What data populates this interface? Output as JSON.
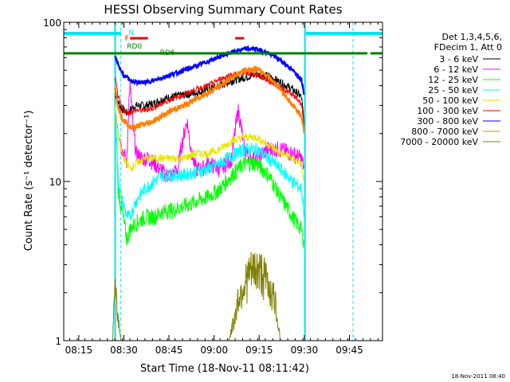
{
  "chart_data": {
    "type": "line",
    "title": "HESSI Observing Summary Count Rates",
    "xlabel": "Start Time (18-Nov-11 08:11:42)",
    "ylabel": "Count Rate (s⁻¹ detector⁻¹)",
    "yscale": "log",
    "ylim": [
      1,
      100
    ],
    "xlim_minutes": [
      490,
      596
    ],
    "x_ticks": [
      {
        "min": 495,
        "label": "08:15"
      },
      {
        "min": 510,
        "label": "08:30"
      },
      {
        "min": 525,
        "label": "08:45"
      },
      {
        "min": 540,
        "label": "09:00"
      },
      {
        "min": 555,
        "label": "09:15"
      },
      {
        "min": 570,
        "label": "09:30"
      },
      {
        "min": 585,
        "label": "09:45"
      }
    ],
    "y_ticks": [
      {
        "value": 1,
        "label": "1"
      },
      {
        "value": 10,
        "label": "10"
      },
      {
        "value": 100,
        "label": "100"
      }
    ],
    "legend_header": [
      "Det 1,3,4,5,6,",
      "FDecim 1, Att 0"
    ],
    "legend_position": "right",
    "footer": "18-Nov-2011 08:40",
    "flags": [
      {
        "label": "N",
        "color": "#00e5ee"
      },
      {
        "label": "F",
        "color": "#ff0000"
      },
      {
        "label": "RD0",
        "color": "#008000"
      },
      {
        "label": "RD6",
        "color": "#008000"
      }
    ],
    "series": [
      {
        "name": "3 - 6 keV",
        "color": "#000000",
        "x": [
          507,
          508,
          509,
          510,
          511,
          512,
          514,
          517,
          520,
          523,
          526,
          530,
          534,
          538,
          542,
          546,
          550,
          554,
          558,
          562,
          566,
          569,
          570
        ],
        "y": [
          36,
          32,
          29,
          28,
          27,
          28,
          30,
          30,
          31,
          33,
          34,
          35,
          36,
          38,
          40,
          43,
          45,
          47,
          46,
          42,
          38,
          34,
          22
        ]
      },
      {
        "name": "6 - 12 keV",
        "color": "#ff00ff",
        "x": [
          507,
          508,
          509,
          510,
          511,
          512,
          513,
          514,
          516,
          518,
          520,
          522,
          524,
          526,
          528,
          530,
          531,
          532,
          533,
          534,
          536,
          538,
          542,
          546,
          548,
          550,
          552,
          554,
          558,
          562,
          566,
          569,
          570
        ],
        "y": [
          30,
          22,
          17,
          15,
          13,
          40,
          22,
          15,
          14,
          14,
          13,
          12,
          11,
          11,
          12,
          20,
          24,
          17,
          14,
          12,
          12,
          13,
          12,
          14,
          28,
          16,
          14,
          14,
          16,
          16,
          15,
          14,
          12
        ]
      },
      {
        "name": "12 - 25 keV",
        "color": "#00ff00",
        "x": [
          507,
          508,
          509,
          510,
          511,
          512,
          514,
          517,
          520,
          523,
          526,
          530,
          534,
          538,
          542,
          546,
          550,
          554,
          558,
          562,
          566,
          569,
          570
        ],
        "y": [
          30,
          9,
          7,
          5.5,
          4.3,
          5,
          5.5,
          6,
          6,
          6.5,
          6.6,
          7,
          7.5,
          8,
          9,
          11,
          13,
          13,
          11,
          8,
          6,
          5,
          4
        ]
      },
      {
        "name": "25 - 50 keV",
        "color": "#00ffff",
        "x": [
          507,
          508,
          509,
          510,
          511,
          512,
          514,
          517,
          520,
          523,
          526,
          530,
          534,
          538,
          542,
          546,
          550,
          554,
          558,
          562,
          566,
          569,
          570
        ],
        "y": [
          30,
          11,
          8,
          7,
          6,
          6,
          7.5,
          9,
          10,
          11,
          11,
          11,
          11.5,
          12,
          13,
          14.5,
          16,
          16,
          14,
          12,
          10,
          9,
          6
        ]
      },
      {
        "name": "50 - 100 keV",
        "color": "#e6e600",
        "x": [
          507,
          508,
          509,
          510,
          511,
          512,
          514,
          517,
          520,
          523,
          526,
          530,
          534,
          538,
          542,
          546,
          550,
          554,
          558,
          562,
          566,
          569,
          570
        ],
        "y": [
          30,
          20,
          16,
          14,
          13,
          12,
          13,
          14,
          14,
          14,
          14,
          14,
          15,
          15,
          16,
          18,
          19,
          19,
          17,
          15,
          14,
          13,
          9
        ]
      },
      {
        "name": "100 - 300 keV",
        "color": "#ff0000",
        "x": [
          507,
          508,
          509,
          510,
          511,
          512,
          514,
          517,
          520,
          523,
          526,
          530,
          534,
          538,
          542,
          546,
          550,
          554,
          558,
          562,
          566,
          569,
          570
        ],
        "y": [
          45,
          35,
          30,
          28,
          27,
          27,
          28,
          28,
          29,
          31,
          33,
          35,
          38,
          40,
          44,
          47,
          48,
          47,
          43,
          39,
          35,
          31,
          22
        ]
      },
      {
        "name": "300 - 800 keV",
        "color": "#0000ff",
        "x": [
          507,
          508,
          509,
          510,
          511,
          512,
          514,
          517,
          520,
          523,
          526,
          530,
          534,
          538,
          542,
          546,
          550,
          554,
          558,
          562,
          566,
          569,
          570
        ],
        "y": [
          60,
          55,
          50,
          46,
          45,
          43,
          42,
          42,
          43,
          45,
          47,
          50,
          53,
          57,
          61,
          65,
          68,
          68,
          64,
          58,
          50,
          44,
          35
        ]
      },
      {
        "name": "800 - 7000 keV",
        "color": "#ff8000",
        "x": [
          507,
          508,
          509,
          510,
          511,
          512,
          514,
          517,
          520,
          523,
          526,
          530,
          534,
          538,
          542,
          546,
          550,
          554,
          558,
          562,
          566,
          569,
          570
        ],
        "y": [
          40,
          30,
          26,
          24,
          23,
          22,
          22,
          23,
          24,
          26,
          28,
          30,
          33,
          36,
          40,
          45,
          50,
          51,
          46,
          38,
          30,
          26,
          20
        ]
      },
      {
        "name": "7000 - 20000 keV",
        "color": "#808000",
        "x": [
          506.3,
          507,
          507.5,
          508,
          509,
          510,
          511,
          514,
          520,
          530,
          540,
          545,
          547,
          548,
          550,
          552,
          554,
          556,
          558,
          560,
          561,
          562,
          564,
          570
        ],
        "y": [
          1,
          2.5,
          2,
          1.5,
          1,
          1,
          1,
          1,
          1,
          1,
          1,
          1,
          1.5,
          2,
          2.5,
          3,
          3.2,
          3,
          2.5,
          2,
          1.5,
          1,
          1,
          1
        ]
      }
    ]
  }
}
